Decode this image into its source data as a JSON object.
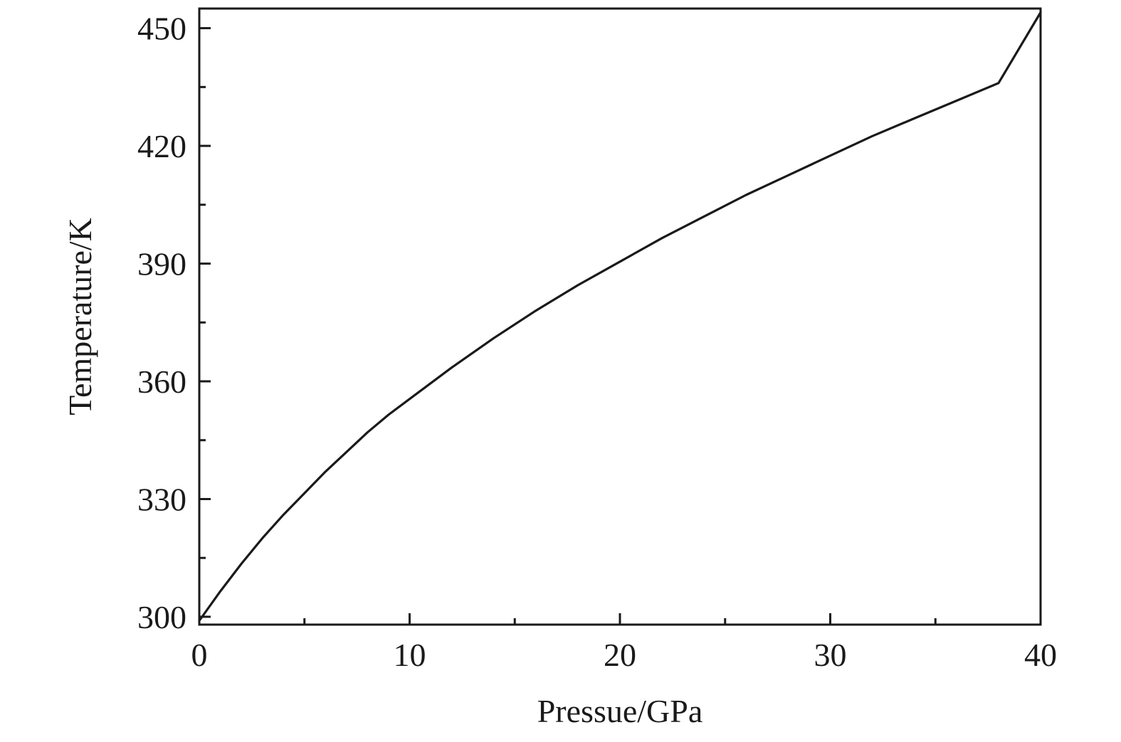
{
  "chart_data": {
    "type": "line",
    "title": "",
    "xlabel": "Pressue/GPa",
    "ylabel": "Temperature/K",
    "xlim": [
      0,
      40
    ],
    "ylim": [
      298,
      455
    ],
    "x_ticks": [
      0,
      10,
      20,
      30,
      40
    ],
    "x_minor_ticks": [
      5,
      15,
      25,
      35
    ],
    "y_ticks": [
      300,
      330,
      360,
      390,
      420,
      450
    ],
    "y_minor_ticks": [
      315,
      345,
      375,
      405,
      435
    ],
    "grid": false,
    "legend": "none",
    "line_color": "#1a1a1a",
    "series": [
      {
        "x": [
          0,
          1,
          2,
          3,
          4,
          5,
          6,
          7,
          8,
          9,
          10,
          12,
          14,
          16,
          18,
          20,
          22,
          24,
          26,
          28,
          30,
          32,
          34,
          36,
          38,
          40
        ],
        "y": [
          299,
          306.5,
          313.5,
          320,
          326,
          331.5,
          337,
          342,
          347,
          351.5,
          355.5,
          363.5,
          371,
          378,
          384.5,
          390.5,
          396.5,
          402,
          407.5,
          412.5,
          417.5,
          422.5,
          427,
          431.5,
          436,
          454
        ]
      }
    ]
  }
}
